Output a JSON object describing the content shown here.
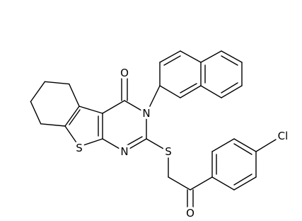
{
  "atoms": [
    {
      "label": "O"
    },
    {
      "label": "N"
    },
    {
      "label": "S"
    },
    {
      "label": "N"
    },
    {
      "label": "S"
    },
    {
      "label": "O"
    },
    {
      "label": "Cl"
    }
  ]
}
